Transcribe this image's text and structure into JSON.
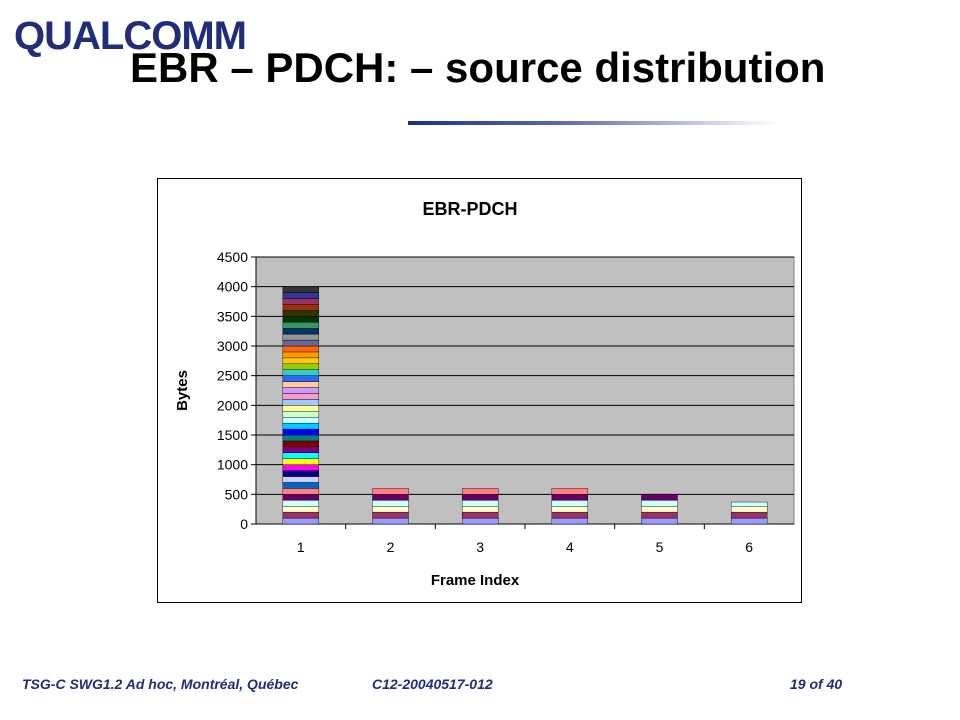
{
  "logo": {
    "text": "QUALCOMM"
  },
  "slide_title": "EBR – PDCH: – source distribution",
  "footer": {
    "left": "TSG-C SWG1.2 Ad hoc, Montréal, Québec",
    "mid": "C12-20040517-012",
    "right": "19 of 40"
  },
  "chart_data": {
    "type": "bar",
    "stacked": true,
    "title": "EBR-PDCH",
    "xlabel": "Frame Index",
    "ylabel": "Bytes",
    "categories": [
      "1",
      "2",
      "3",
      "4",
      "5",
      "6"
    ],
    "ylim": [
      0,
      4500
    ],
    "yticks": [
      0,
      500,
      1000,
      1500,
      2000,
      2500,
      3000,
      3500,
      4000,
      4500
    ],
    "ytick_labels": [
      "0",
      "500",
      "1000",
      "1500",
      "2000",
      "2500",
      "3000",
      "3500",
      "4000",
      "4500"
    ],
    "totals": [
      4000,
      600,
      600,
      600,
      500,
      370
    ],
    "segment_size_bytes": 100,
    "grid": true,
    "plot_background": "#c0c0c0",
    "segment_colors": [
      "#9999ff",
      "#993366",
      "#ffffcc",
      "#ccffff",
      "#660066",
      "#ff8080",
      "#0066cc",
      "#ccccff",
      "#000080",
      "#ff00ff",
      "#ffff00",
      "#00ffff",
      "#800080",
      "#800000",
      "#008080",
      "#0000ff",
      "#00ccff",
      "#ccffff",
      "#ccffcc",
      "#ffff99",
      "#99ccff",
      "#ff99cc",
      "#cc99ff",
      "#ffcc99",
      "#3366ff",
      "#33cccc",
      "#99cc00",
      "#ffcc00",
      "#ff9900",
      "#ff6600",
      "#666699",
      "#969696",
      "#003366",
      "#339966",
      "#003300",
      "#333300",
      "#993300",
      "#993366",
      "#333399",
      "#333333",
      "#000000",
      "#ffffff",
      "#ff0000",
      "#00ff00"
    ]
  }
}
